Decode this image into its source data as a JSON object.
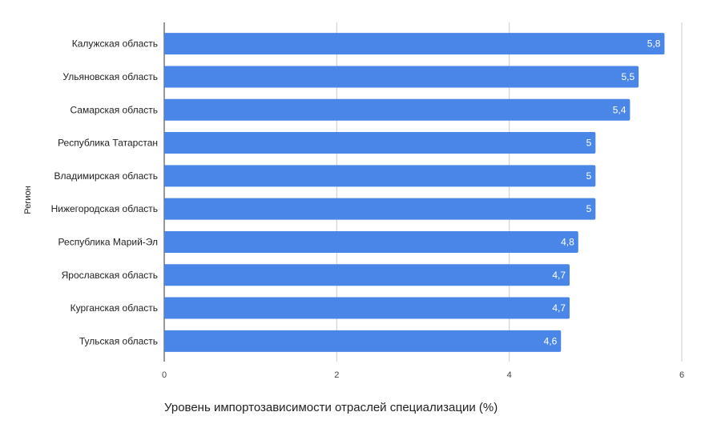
{
  "chart_data": {
    "type": "bar",
    "orientation": "horizontal",
    "categories": [
      "Калужская область",
      "Ульяновская область",
      "Самарская область",
      "Республика Татарстан",
      "Владимирская область",
      "Нижегородская область",
      "Республика Марий-Эл",
      "Ярославская область",
      "Курганская область",
      "Тульская область"
    ],
    "values": [
      5.8,
      5.5,
      5.4,
      5,
      5,
      5,
      4.8,
      4.7,
      4.7,
      4.6
    ],
    "data_labels": [
      "5,8",
      "5,5",
      "5,4",
      "5",
      "5",
      "5",
      "4,8",
      "4,7",
      "4,7",
      "4,6"
    ],
    "xticks": [
      0,
      2,
      4,
      6
    ],
    "xtick_labels": [
      "0",
      "2",
      "4",
      "6"
    ],
    "xlim": [
      0,
      6
    ],
    "xlabel": "Уровень импортозависимости отраслей специализации (%)",
    "ylabel": "Регион",
    "title": "",
    "grid": true,
    "legend": "none",
    "bar_color": "#4a86e8",
    "grid_color": "#cccccc"
  }
}
